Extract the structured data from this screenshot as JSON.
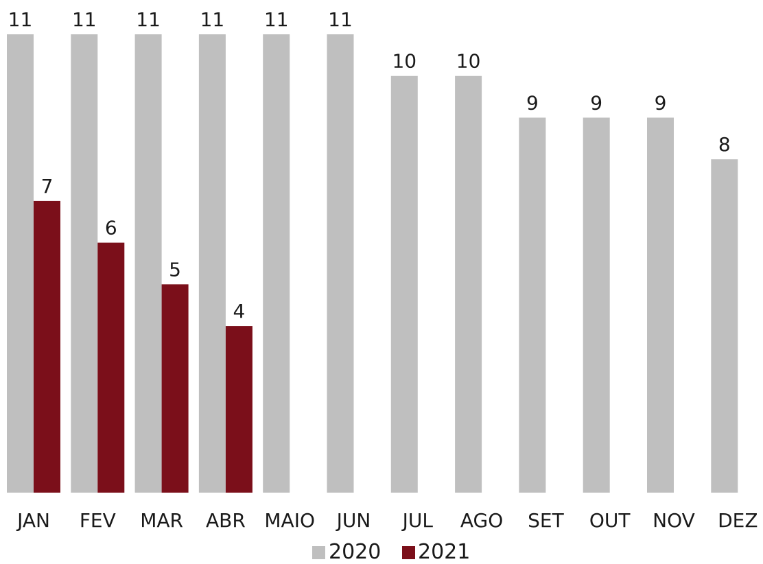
{
  "chart_data": {
    "type": "bar",
    "categories": [
      "JAN",
      "FEV",
      "MAR",
      "ABR",
      "MAIO",
      "JUN",
      "JUL",
      "AGO",
      "SET",
      "OUT",
      "NOV",
      "DEZ"
    ],
    "series": [
      {
        "name": "2020",
        "color": "#bfbfbf",
        "values": [
          11,
          11,
          11,
          11,
          11,
          11,
          10,
          10,
          9,
          9,
          9,
          8
        ]
      },
      {
        "name": "2021",
        "color": "#7b0f1a",
        "values": [
          7,
          6,
          5,
          4,
          null,
          null,
          null,
          null,
          null,
          null,
          null,
          null
        ]
      }
    ],
    "title": "",
    "xlabel": "",
    "ylabel": "",
    "ylim": [
      0,
      11
    ],
    "grid": false,
    "legend": "bottom-center"
  }
}
